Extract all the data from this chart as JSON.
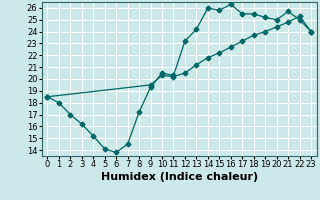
{
  "xlabel": "Humidex (Indice chaleur)",
  "bg_color": "#cce8e8",
  "grid_color": "#ffffff",
  "line_color": "#006666",
  "xlim": [
    -0.5,
    23.5
  ],
  "ylim": [
    13.5,
    26.5
  ],
  "xticks": [
    0,
    1,
    2,
    3,
    4,
    5,
    6,
    7,
    8,
    9,
    10,
    11,
    12,
    13,
    14,
    15,
    16,
    17,
    18,
    19,
    20,
    21,
    22,
    23
  ],
  "yticks": [
    14,
    15,
    16,
    17,
    18,
    19,
    20,
    21,
    22,
    23,
    24,
    25,
    26
  ],
  "line1_x": [
    0,
    1,
    2,
    3,
    4,
    5,
    6,
    7,
    8,
    9,
    10,
    11,
    12,
    13,
    14,
    15,
    16,
    17,
    18,
    19,
    20,
    21,
    22,
    23
  ],
  "line1_y": [
    18.5,
    18.0,
    17.0,
    16.2,
    15.2,
    14.1,
    13.8,
    14.5,
    17.2,
    19.3,
    20.5,
    20.3,
    23.2,
    24.2,
    26.0,
    25.8,
    26.3,
    25.5,
    25.5,
    25.2,
    25.0,
    25.7,
    25.0,
    24.0
  ],
  "line2_x": [
    0,
    9,
    10,
    11,
    12,
    13,
    14,
    15,
    16,
    17,
    18,
    19,
    20,
    21,
    22,
    23
  ],
  "line2_y": [
    18.5,
    19.5,
    20.3,
    20.2,
    20.5,
    21.2,
    21.8,
    22.2,
    22.7,
    23.2,
    23.7,
    24.0,
    24.4,
    24.8,
    25.3,
    24.0
  ],
  "xlabel_fontsize": 8,
  "tick_fontsize": 6,
  "lw": 0.9,
  "ms": 2.5
}
